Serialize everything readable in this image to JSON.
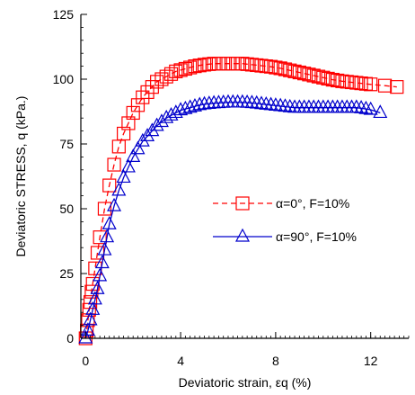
{
  "chart_data": {
    "type": "line",
    "title": "",
    "xlabel": "Deviatoric strain, εq (%)",
    "ylabel": "Deviatoric STRESS, q (kPa.)",
    "xlim": [
      -0.2,
      13.6
    ],
    "ylim": [
      0,
      125
    ],
    "xticks": [
      0,
      4,
      8,
      12
    ],
    "xtick_labels": [
      "0",
      "4",
      "8",
      "12"
    ],
    "yticks": [
      0,
      25,
      50,
      75,
      100,
      125
    ],
    "ytick_labels": [
      "0",
      "25",
      "50",
      "75",
      "100",
      "125"
    ],
    "x_minor_step": 0.2,
    "y_minor_step": 5,
    "legend_position": "center-right",
    "grid": false,
    "series": [
      {
        "name": "α=0°, F=10%",
        "color": "#ff0000",
        "line_style": "dashed",
        "marker": "square",
        "x": [
          0,
          0.05,
          0.1,
          0.15,
          0.2,
          0.25,
          0.3,
          0.4,
          0.5,
          0.6,
          0.8,
          1.0,
          1.2,
          1.4,
          1.6,
          1.8,
          2.0,
          2.2,
          2.4,
          2.6,
          2.8,
          3.0,
          3.2,
          3.4,
          3.6,
          3.8,
          4.0,
          4.2,
          4.4,
          4.6,
          4.8,
          5.0,
          5.2,
          5.4,
          5.6,
          5.8,
          6.0,
          6.2,
          6.4,
          6.6,
          6.8,
          7.0,
          7.2,
          7.4,
          7.6,
          7.8,
          8.0,
          8.2,
          8.4,
          8.6,
          8.8,
          9.0,
          9.2,
          9.4,
          9.6,
          9.8,
          10.0,
          10.2,
          10.4,
          10.6,
          10.8,
          11.0,
          11.2,
          11.4,
          11.6,
          11.8,
          12.0,
          12.6,
          13.1
        ],
        "y": [
          0,
          3,
          7,
          11,
          14,
          18,
          21,
          27,
          33,
          39,
          50,
          59,
          67,
          74,
          79,
          83,
          87,
          90,
          93,
          95,
          97,
          99,
          100,
          101,
          102,
          103,
          103.5,
          104,
          104.5,
          105,
          105.3,
          105.6,
          105.8,
          106,
          106,
          106,
          106,
          106,
          106,
          106,
          105.8,
          105.6,
          105.4,
          105.2,
          105,
          104.8,
          104.5,
          104.2,
          103.8,
          103.4,
          103,
          102.6,
          102.2,
          101.8,
          101.4,
          101,
          100.6,
          100.2,
          99.8,
          99.5,
          99.2,
          99,
          98.8,
          98.6,
          98.4,
          98.2,
          98,
          97.5,
          97
        ]
      },
      {
        "name": "α=90°, F=10%",
        "color": "#0000cc",
        "line_style": "solid",
        "marker": "triangle",
        "x": [
          0,
          0.1,
          0.2,
          0.3,
          0.4,
          0.5,
          0.6,
          0.7,
          0.8,
          0.9,
          1.0,
          1.2,
          1.4,
          1.6,
          1.8,
          2.0,
          2.2,
          2.4,
          2.6,
          2.8,
          3.0,
          3.2,
          3.4,
          3.6,
          3.8,
          4.0,
          4.2,
          4.4,
          4.6,
          4.8,
          5.0,
          5.2,
          5.4,
          5.6,
          5.8,
          6.0,
          6.2,
          6.4,
          6.6,
          6.8,
          7.0,
          7.2,
          7.4,
          7.6,
          7.8,
          8.0,
          8.2,
          8.4,
          8.6,
          8.8,
          9.0,
          9.2,
          9.4,
          9.6,
          9.8,
          10.0,
          10.2,
          10.4,
          10.6,
          10.8,
          11.0,
          11.2,
          11.4,
          11.6,
          11.8,
          12.0,
          12.4
        ],
        "y": [
          0,
          3,
          7,
          11,
          15,
          19,
          24,
          29,
          34,
          39,
          44,
          51,
          57,
          62,
          66,
          70,
          73,
          76,
          78,
          80,
          82,
          83.5,
          85,
          86,
          87,
          88,
          88.5,
          89,
          89.5,
          90,
          90.3,
          90.5,
          90.7,
          90.8,
          90.9,
          91,
          91,
          91,
          91,
          90.9,
          90.8,
          90.6,
          90.4,
          90.2,
          90,
          89.8,
          89.6,
          89.4,
          89.2,
          89,
          89,
          89,
          89,
          89,
          89,
          89,
          89,
          89,
          89,
          89,
          89,
          89,
          89,
          88.8,
          88.5,
          88.2,
          87
        ]
      }
    ]
  }
}
